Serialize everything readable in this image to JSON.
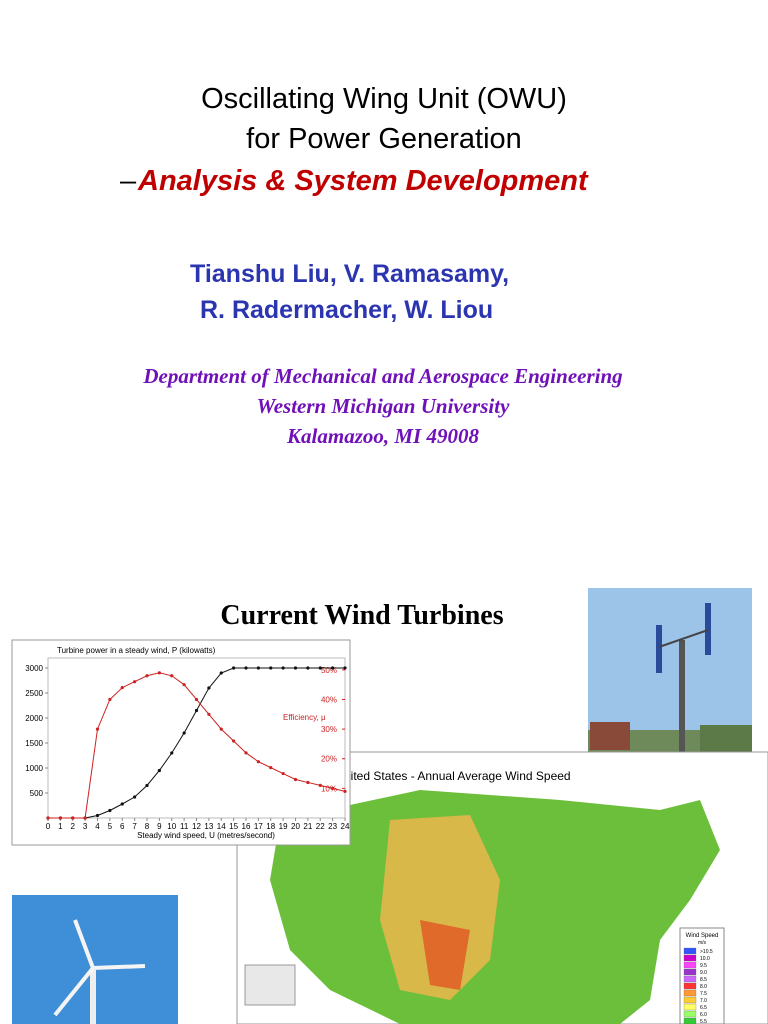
{
  "title": {
    "line1": "Oscillating Wing Unit (OWU)",
    "line2": "for Power Generation",
    "dash": "–",
    "line3": "Analysis & System Development"
  },
  "authors": [
    "Tianshu Liu, V. Ramasamy,",
    "R. Radermacher, W. Liou"
  ],
  "affiliation": [
    "Department of Mechanical and Aerospace Engineering",
    "Western Michigan University",
    "Kalamazoo, MI 49008"
  ],
  "section_title": "Current Wind Turbines",
  "chart_data": {
    "type": "line",
    "title": "Turbine power in a steady wind, P (kilowatts)",
    "x_label": "Steady wind speed, U (metres/second)",
    "x": [
      0,
      1,
      2,
      3,
      4,
      5,
      6,
      7,
      8,
      9,
      10,
      11,
      12,
      13,
      14,
      15,
      16,
      17,
      18,
      19,
      20,
      21,
      22,
      23,
      24
    ],
    "series": [
      {
        "name": "Turbine power",
        "color": "#111111",
        "values": [
          0,
          0,
          0,
          0,
          50,
          150,
          280,
          420,
          650,
          950,
          1300,
          1700,
          2150,
          2600,
          2900,
          3000,
          3000,
          3000,
          3000,
          3000,
          3000,
          3000,
          3000,
          3000,
          3000
        ]
      },
      {
        "name": "Efficiency, μ",
        "color": "#cc2222",
        "axis": "y2",
        "values": [
          0,
          0,
          0,
          0,
          30,
          40,
          44,
          46,
          48,
          49,
          48,
          45,
          40,
          35,
          30,
          26,
          22,
          19,
          17,
          15,
          13,
          12,
          11,
          10,
          9
        ]
      }
    ],
    "xlim": [
      0,
      24
    ],
    "xticks": [
      0,
      1,
      2,
      3,
      4,
      5,
      6,
      7,
      8,
      9,
      10,
      11,
      12,
      13,
      14,
      15,
      16,
      17,
      18,
      19,
      20,
      21,
      22,
      23,
      24
    ],
    "ylim": [
      0,
      3200
    ],
    "yticks": [
      500,
      1000,
      1500,
      2000,
      2500,
      3000
    ],
    "y2lim": [
      0,
      54
    ],
    "y2ticks": [
      {
        "value": 10,
        "label": "10%"
      },
      {
        "value": 20,
        "label": "20%"
      },
      {
        "value": 30,
        "label": "30%"
      },
      {
        "value": 40,
        "label": "40%"
      },
      {
        "value": 50,
        "label": "50%"
      }
    ]
  },
  "map": {
    "title": "nited States - Annual Average Wind Speed",
    "legend_title": "Wind Speed",
    "legend_unit": "m/s",
    "legend_labels": [
      ">10.5",
      "10.0",
      "9.5",
      "9.0",
      "8.5",
      "8.0",
      "7.5",
      "7.0",
      "6.5",
      "6.0",
      "5.5"
    ],
    "legend_colors": [
      "#3355ff",
      "#cc00cc",
      "#ff44ff",
      "#9933cc",
      "#cc66ff",
      "#ff3333",
      "#ff9933",
      "#ffcc33",
      "#ffff66",
      "#99ff66",
      "#33cc33"
    ]
  }
}
